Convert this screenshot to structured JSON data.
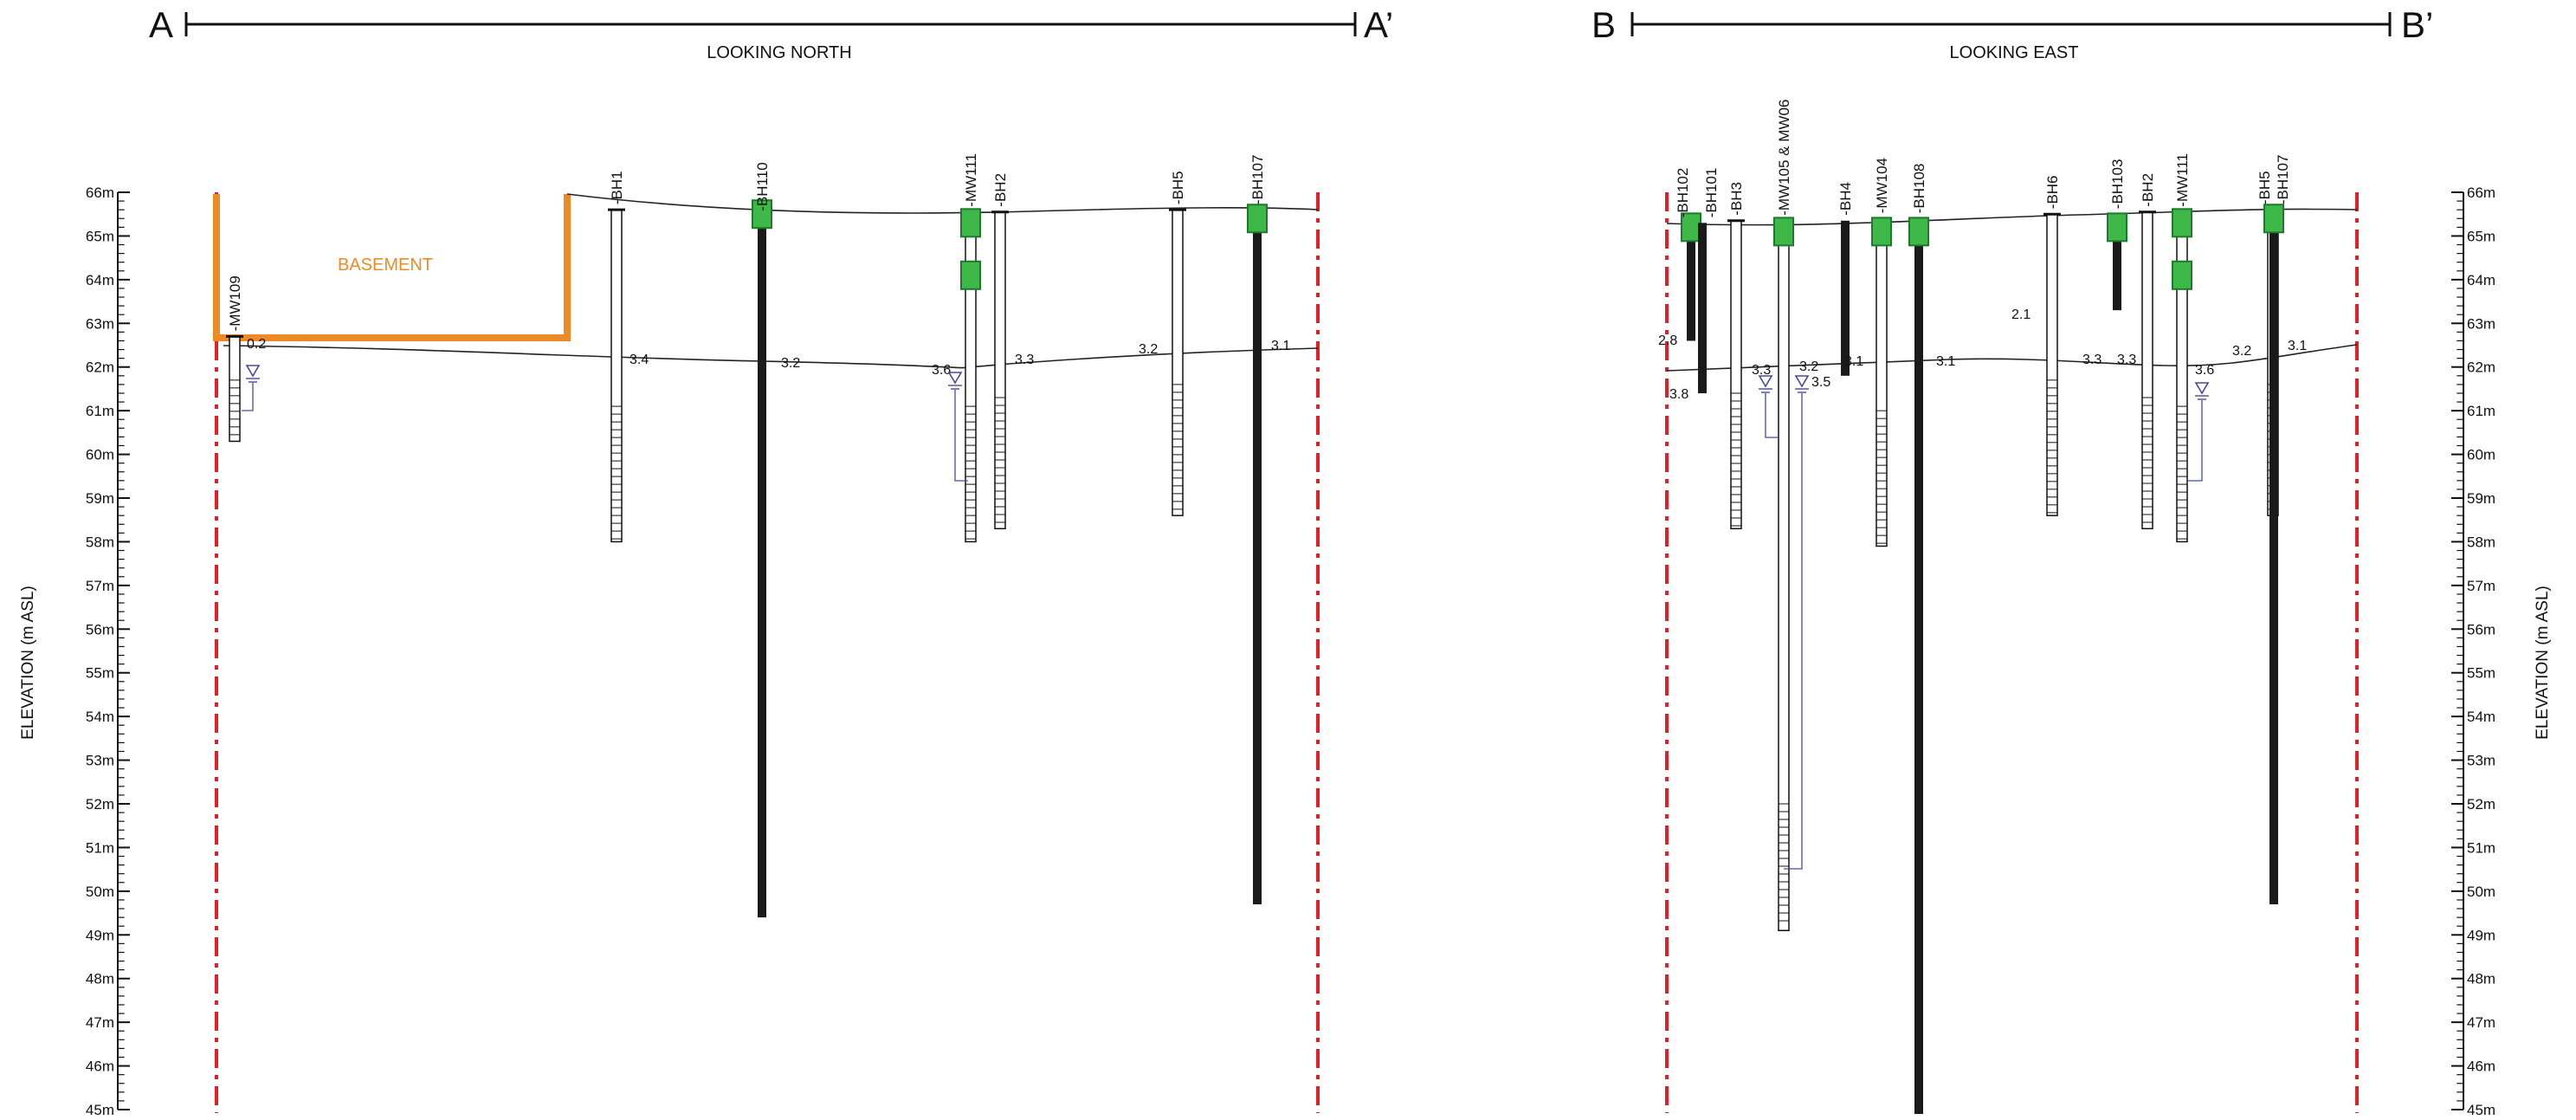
{
  "section_a": {
    "start_label": "A",
    "end_label": "A’",
    "view": "LOOKING NORTH",
    "basement_label": "BASEMENT",
    "axis_title": "ELEVATION (m ASL)",
    "wells": [
      {
        "label": "-MW109",
        "top": 62.7,
        "bottom": 60.3,
        "screen_top": 61.7,
        "style": "monitor"
      },
      {
        "label": "-BH1",
        "top": 65.6,
        "bottom": 58.0,
        "screen_top": 61.1,
        "style": "open"
      },
      {
        "label": "-BH110",
        "top": 65.45,
        "bottom": 49.4,
        "style": "rock",
        "seal": [
          65.5
        ]
      },
      {
        "label": "-MW111",
        "top": 65.55,
        "bottom": 58.0,
        "screen_top": 61.1,
        "style": "monitor",
        "seal": [
          65.3,
          64.1
        ]
      },
      {
        "label": "-BH2",
        "top": 65.55,
        "bottom": 58.3,
        "screen_top": 61.3,
        "style": "open"
      },
      {
        "label": "-BH5",
        "top": 65.6,
        "bottom": 58.6,
        "screen_top": 61.6,
        "style": "open"
      },
      {
        "label": "-BH107",
        "top": 65.6,
        "bottom": 49.7,
        "style": "rock",
        "seal": [
          65.4
        ]
      }
    ],
    "depth_labels": [
      "0.2",
      "3.4",
      "3.2",
      "3.6",
      "3.3",
      "3.2",
      "3.1"
    ]
  },
  "section_b": {
    "start_label": "B",
    "end_label": "B’",
    "view": "LOOKING EAST",
    "axis_title": "ELEVATION (m ASL)",
    "wells": [
      {
        "label": "-BH102",
        "top": 65.3,
        "bottom": 62.6,
        "style": "rock",
        "seal": [
          65.2
        ]
      },
      {
        "label": "-BH101",
        "top": 65.3,
        "bottom": 61.4,
        "style": "rock"
      },
      {
        "label": "-BH3",
        "top": 65.35,
        "bottom": 58.3,
        "screen_top": 61.4,
        "style": "open"
      },
      {
        "label": "-MW105 & MW06",
        "top": 65.35,
        "bottom": 49.1,
        "screen_top": 52.0,
        "style": "monitor",
        "seal": [
          65.1
        ]
      },
      {
        "label": "-BH4",
        "top": 65.35,
        "bottom": 61.8,
        "style": "rock"
      },
      {
        "label": "-MW104",
        "top": 65.4,
        "bottom": 57.9,
        "screen_top": 61.0,
        "style": "monitor",
        "seal": [
          65.1
        ]
      },
      {
        "label": "-BH108",
        "top": 65.4,
        "bottom": 44.9,
        "style": "rock",
        "seal": [
          65.1
        ]
      },
      {
        "label": "-BH6",
        "top": 65.5,
        "bottom": 58.6,
        "screen_top": 61.7,
        "style": "open"
      },
      {
        "label": "-BH103",
        "top": 65.5,
        "bottom": 63.3,
        "style": "rock",
        "seal": [
          65.2
        ]
      },
      {
        "label": "-BH2",
        "top": 65.55,
        "bottom": 58.3,
        "screen_top": 61.3,
        "style": "open"
      },
      {
        "label": "-MW111",
        "top": 65.55,
        "bottom": 58.0,
        "screen_top": 61.1,
        "style": "monitor",
        "seal": [
          65.3,
          64.1
        ]
      },
      {
        "label": "-BH5",
        "top": 65.6,
        "bottom": 58.6,
        "screen_top": 61.6,
        "style": "open"
      },
      {
        "label": "-BH107",
        "top": 65.6,
        "bottom": 49.7,
        "style": "rock",
        "seal": [
          65.4
        ]
      }
    ],
    "depth_labels": [
      "2.8",
      "3.8",
      "3.3",
      "3.2",
      "3.5",
      "3.1",
      "3.1",
      "2.1",
      "3.3",
      "3.3",
      "3.6",
      "3.2",
      "3.1"
    ]
  },
  "elevation_scale": {
    "min": 45,
    "max": 66,
    "tick_labels": [
      "66m",
      "65m",
      "64m",
      "63m",
      "62m",
      "61m",
      "60m",
      "59m",
      "58m",
      "57m",
      "56m",
      "55m",
      "54m",
      "53m",
      "52m",
      "51m",
      "50m",
      "49m",
      "48m",
      "47m",
      "46m",
      "45m"
    ]
  },
  "colors": {
    "section_boundary": "#e21f26",
    "basement": "#ee8a26",
    "seal": "#3fb84a",
    "seal_edge": "#1d7a2c",
    "water_symbol": "#4a4a9a",
    "rock_column": "#1a1a1a"
  }
}
